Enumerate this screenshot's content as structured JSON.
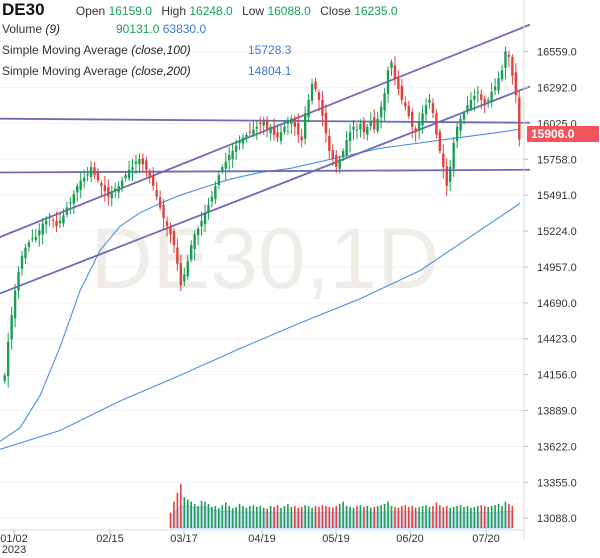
{
  "header": {
    "symbol": "DE30",
    "open_label": "Open",
    "open_value": "16159.0",
    "high_label": "High",
    "high_value": "16248.0",
    "low_label": "Low",
    "low_value": "16088.0",
    "close_label": "Close",
    "close_value": "16235.0",
    "volume_label": "Volume",
    "volume_period": "(9)",
    "volume_value": "90131.0",
    "volume_ma_value": "63830.0",
    "sma100_label": "Simple Moving Average",
    "sma100_params": "(close,100)",
    "sma100_value": "15728.3",
    "sma200_label": "Simple Moving Average",
    "sma200_params": "(close,200)",
    "sma200_value": "14804.1"
  },
  "watermark": "DE30,1D",
  "colors": {
    "up": "#1a9e55",
    "down": "#e0413f",
    "sma": "#4a90e2",
    "trendline": "#6c6cb4",
    "volume_area": "#a9c8ea",
    "price_badge": "#f2545b"
  },
  "chart_data": {
    "type": "candlestick",
    "interval": "1D",
    "x_tick_labels": [
      "01/02\n2023",
      "02/15",
      "03/17",
      "04/19",
      "05/19",
      "06/20",
      "07/20"
    ],
    "y_ticks": [
      13088.0,
      13355.0,
      13622.0,
      13889.0,
      14156.0,
      14423.0,
      14690.0,
      14957.0,
      15224.0,
      15491.0,
      15758.0,
      16025.0,
      16292.0,
      16559.0
    ],
    "y_range": [
      13000,
      16720
    ],
    "current_price": "15906.0",
    "close_series": [
      14150,
      14400,
      14600,
      14780,
      14920,
      15040,
      15100,
      15140,
      15170,
      15180,
      15230,
      15280,
      15300,
      15330,
      15300,
      15260,
      15300,
      15340,
      15400,
      15440,
      15500,
      15560,
      15600,
      15620,
      15650,
      15700,
      15640,
      15600,
      15560,
      15520,
      15480,
      15510,
      15540,
      15560,
      15600,
      15640,
      15680,
      15700,
      15740,
      15760,
      15720,
      15680,
      15620,
      15560,
      15480,
      15400,
      15320,
      15260,
      15200,
      15120,
      14980,
      14820,
      14900,
      15000,
      15120,
      15200,
      15240,
      15300,
      15360,
      15420,
      15480,
      15560,
      15640,
      15700,
      15740,
      15790,
      15820,
      15860,
      15900,
      15920,
      15940,
      15960,
      15980,
      16000,
      16020,
      16040,
      15980,
      16000,
      15940,
      15920,
      15960,
      16000,
      16040,
      16060,
      16000,
      15940,
      15900,
      16100,
      16200,
      16320,
      16280,
      16200,
      16080,
      15950,
      15820,
      15760,
      15700,
      15760,
      15820,
      15900,
      15960,
      16000,
      15980,
      16020,
      15960,
      16000,
      16040,
      15980,
      16060,
      16150,
      16250,
      16420,
      16480,
      16360,
      16280,
      16200,
      16150,
      16080,
      16000,
      15960,
      16040,
      16100,
      16160,
      16200,
      16100,
      15940,
      15820,
      15700,
      15560,
      15700,
      15880,
      16000,
      16060,
      16100,
      16160,
      16200,
      16230,
      16260,
      16200,
      16160,
      16200,
      16260,
      16300,
      16360,
      16420,
      16560,
      16520,
      16380,
      16235,
      15906
    ],
    "sma100_points": [
      [
        0,
        13660
      ],
      [
        20,
        13760
      ],
      [
        40,
        14000
      ],
      [
        60,
        14360
      ],
      [
        80,
        14780
      ],
      [
        100,
        15080
      ],
      [
        120,
        15260
      ],
      [
        140,
        15360
      ],
      [
        160,
        15430
      ],
      [
        180,
        15490
      ],
      [
        200,
        15540
      ],
      [
        230,
        15610
      ],
      [
        260,
        15660
      ],
      [
        290,
        15690
      ],
      [
        320,
        15740
      ],
      [
        350,
        15790
      ],
      [
        380,
        15840
      ],
      [
        410,
        15870
      ],
      [
        440,
        15900
      ],
      [
        470,
        15930
      ],
      [
        500,
        15960
      ],
      [
        518,
        15980
      ]
    ],
    "sma200_points": [
      [
        0,
        13600
      ],
      [
        60,
        13740
      ],
      [
        120,
        13960
      ],
      [
        180,
        14150
      ],
      [
        240,
        14350
      ],
      [
        300,
        14540
      ],
      [
        360,
        14720
      ],
      [
        420,
        14930
      ],
      [
        460,
        15130
      ],
      [
        500,
        15330
      ],
      [
        520,
        15430
      ]
    ],
    "trendlines": [
      {
        "from": [
          0,
          16060
        ],
        "to": [
          530,
          16030
        ]
      },
      {
        "from": [
          0,
          15660
        ],
        "to": [
          530,
          15680
        ]
      },
      {
        "from": [
          0,
          15180
        ],
        "to": [
          530,
          16760
        ]
      },
      {
        "from": [
          0,
          14760
        ],
        "to": [
          530,
          16300
        ]
      }
    ],
    "volume_series_relative": [
      0,
      0,
      0,
      0,
      0,
      0,
      0,
      0,
      0,
      0,
      0,
      0,
      0,
      0,
      0,
      0,
      0,
      0,
      0,
      0,
      0,
      0,
      0,
      0,
      0,
      0,
      0,
      0,
      0,
      0,
      0,
      0,
      0,
      0,
      0,
      0,
      0,
      0,
      0,
      0,
      0,
      0,
      0,
      0,
      0,
      0,
      0,
      0,
      0.35,
      0.6,
      0.8,
      1.0,
      0.7,
      0.65,
      0.6,
      0.55,
      0.5,
      0.62,
      0.6,
      0.55,
      0.48,
      0.5,
      0.45,
      0.52,
      0.58,
      0.5,
      0.45,
      0.48,
      0.55,
      0.5,
      0.46,
      0.5,
      0.52,
      0.48,
      0.5,
      0.46,
      0.44,
      0.5,
      0.48,
      0.52,
      0.46,
      0.5,
      0.55,
      0.48,
      0.5,
      0.46,
      0.48,
      0.52,
      0.5,
      0.46,
      0.5,
      0.48,
      0.52,
      0.5,
      0.48,
      0.46,
      0.5,
      0.55,
      0.6,
      0.5,
      0.48,
      0.46,
      0.5,
      0.52,
      0.48,
      0.5,
      0.46,
      0.48,
      0.5,
      0.52,
      0.55,
      0.6,
      0.5,
      0.48,
      0.46,
      0.5,
      0.52,
      0.48,
      0.5,
      0.46,
      0.48,
      0.5,
      0.52,
      0.48,
      0.5,
      0.58,
      0.52,
      0.48,
      0.5,
      0.46,
      0.48,
      0.5,
      0.52,
      0.48,
      0.5,
      0.46,
      0.48,
      0.5,
      0.52,
      0.5,
      0.48,
      0.5,
      0.52,
      0.55,
      0.5,
      0.6,
      0.55,
      0.5
    ]
  }
}
